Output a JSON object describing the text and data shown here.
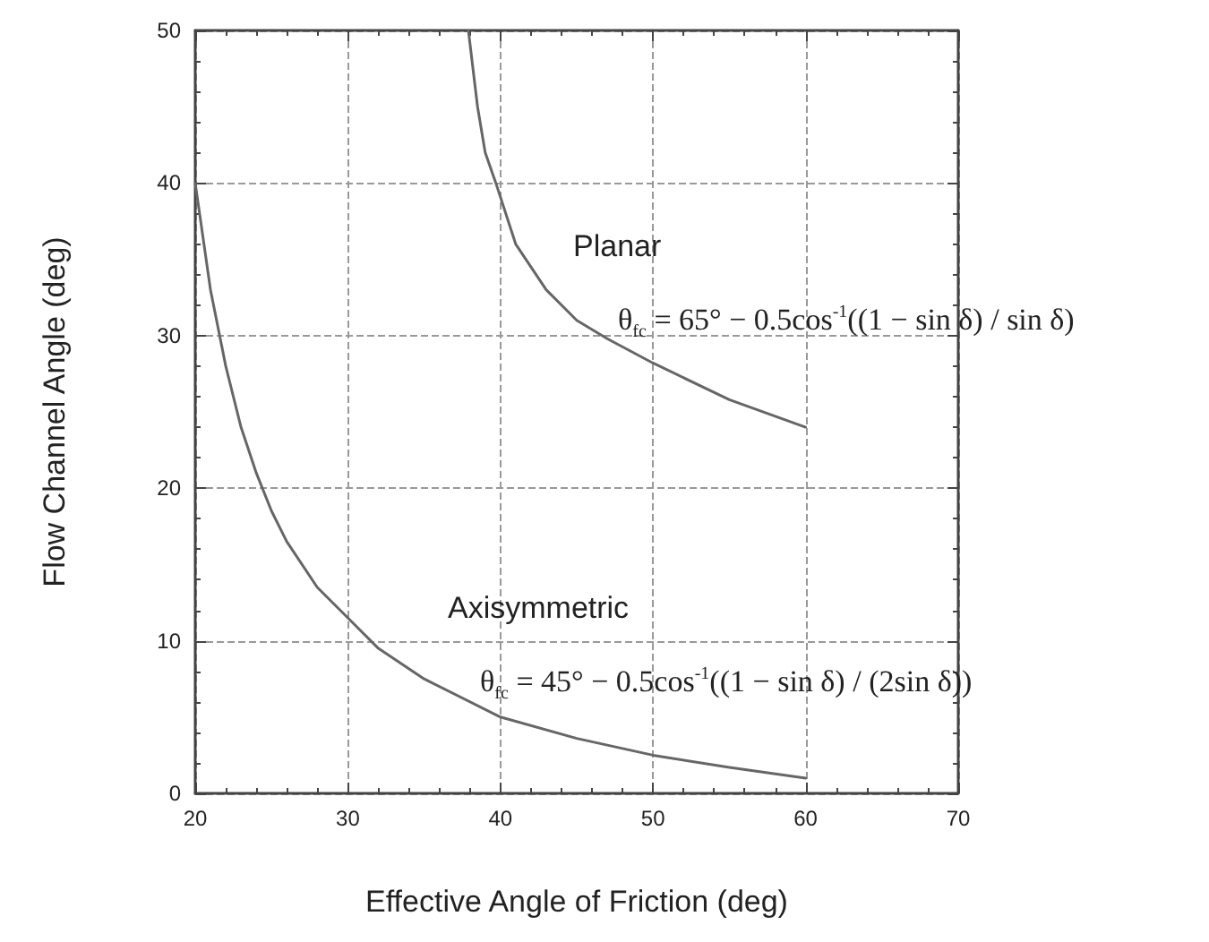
{
  "chart_data": {
    "type": "line",
    "xlabel": "Effective Angle of Friction (deg)",
    "ylabel": "Flow Channel Angle (deg)",
    "xlim": [
      20,
      70
    ],
    "xticks": [
      20,
      30,
      40,
      50,
      60,
      70
    ],
    "ylim": [
      0,
      50
    ],
    "yticks": [
      0,
      10,
      20,
      30,
      40,
      50
    ],
    "grid": true,
    "marker": "none",
    "line_style": "solid",
    "series": [
      {
        "name": "Planar",
        "color": "#666666",
        "x": [
          37.9,
          38.5,
          39,
          39.7,
          41,
          43,
          45,
          47,
          50,
          55,
          60
        ],
        "values": [
          50,
          45,
          42,
          40,
          36,
          33,
          31,
          29.8,
          28.2,
          25.8,
          24
        ]
      },
      {
        "name": "Axisymmetric",
        "color": "#666666",
        "x": [
          20,
          21,
          22,
          23,
          24,
          25,
          26,
          28,
          30,
          32,
          35,
          40,
          45,
          50,
          55,
          60
        ],
        "values": [
          40,
          33,
          28,
          24,
          21,
          18.5,
          16.5,
          13.5,
          11.5,
          9.5,
          7.5,
          5,
          3.6,
          2.5,
          1.7,
          1
        ]
      }
    ],
    "annotations": [
      "θ$_{fc}$ = 65° − 0.5cos$^{-1}$((1 − sin δ) / sin δ)",
      "θ$_{fc}$ = 45° − 0.5cos$^{-1}$((1 − sin δ) / (2sin δ))"
    ]
  }
}
